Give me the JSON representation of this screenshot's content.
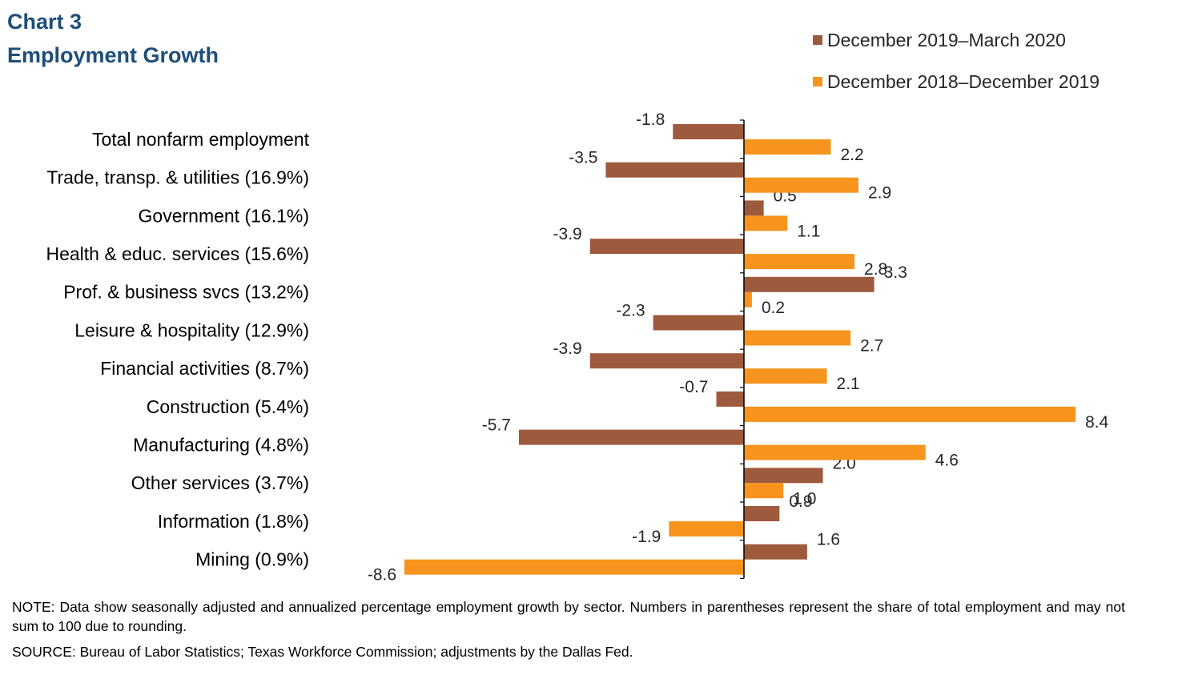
{
  "chart_data": {
    "type": "bar",
    "orientation": "horizontal",
    "title": "Chart 3",
    "subtitle": "Employment Growth",
    "categories": [
      "Total nonfarm employment",
      "Trade, transp. & utilities (16.9%)",
      "Government (16.1%)",
      "Health & educ. services (15.6%)",
      "Prof. & business svcs (13.2%)",
      "Leisure & hospitality (12.9%)",
      "Financial activities (8.7%)",
      "Construction (5.4%)",
      "Manufacturing (4.8%)",
      "Other services (3.7%)",
      "Information (1.8%)",
      "Mining (0.9%)"
    ],
    "series": [
      {
        "name": "December 2019–March 2020",
        "color": "#9e5a3c",
        "values": [
          -1.8,
          -3.5,
          0.5,
          -3.9,
          3.3,
          -2.3,
          -3.9,
          -0.7,
          -5.7,
          2.0,
          0.9,
          1.6
        ],
        "labels": [
          "-1.8",
          "-3.5",
          "0.5",
          "-3.9",
          "3.3",
          "-2.3",
          "-3.9",
          "-0.7",
          "-5.7",
          "2.0",
          "0.9",
          "1.6"
        ]
      },
      {
        "name": "December 2018–December 2019",
        "color": "#f7941d",
        "values": [
          2.2,
          2.9,
          1.1,
          2.8,
          0.2,
          2.7,
          2.1,
          8.4,
          4.6,
          1.0,
          -1.9,
          -8.6
        ],
        "labels": [
          "2.2",
          "2.9",
          "1.1",
          "2.8",
          "0.2",
          "2.7",
          "2.1",
          "8.4",
          "4.6",
          "1.0",
          "-1.9",
          "-8.6"
        ]
      }
    ],
    "legend_position": "top-right",
    "grid": false
  },
  "footer": {
    "note": "NOTE: Data show seasonally adjusted and annualized percentage employment growth by sector. Numbers in parentheses represent the share of total employment and may not sum to 100 due to rounding.",
    "source": "SOURCE: Bureau of Labor Statistics; Texas Workforce Commission; adjustments by the Dallas Fed."
  }
}
